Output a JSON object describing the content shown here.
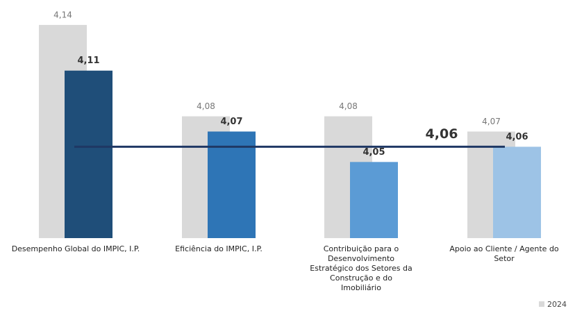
{
  "chart_data": {
    "type": "bar",
    "categories": [
      "Desempenho Global do IMPIC, I.P.",
      "Eficiência do IMPIC, I.P.",
      "Contribuição para o Desenvolvimento Estratégico dos Setores da Construção e do Imobiliário",
      "Apoio ao Cliente / Agente do Setor"
    ],
    "series": [
      {
        "name": "2024",
        "color": "#d9d9d9",
        "values": [
          4.14,
          4.08,
          4.08,
          4.07
        ],
        "value_labels": [
          "4,14",
          "4,08",
          "4,08",
          "4,07"
        ]
      },
      {
        "colors": [
          "#1f4e79",
          "#2e75b6",
          "#5b9bd5",
          "#9dc3e6"
        ],
        "values": [
          4.11,
          4.07,
          4.05,
          4.06
        ],
        "value_labels": [
          "4,11",
          "4,07",
          "4,05",
          "4,06"
        ]
      }
    ],
    "reference_line": {
      "value": 4.06,
      "label": "4,06",
      "color": "#1f3864"
    },
    "ylim": [
      4.0,
      4.15
    ],
    "legend": "bottom-right"
  }
}
